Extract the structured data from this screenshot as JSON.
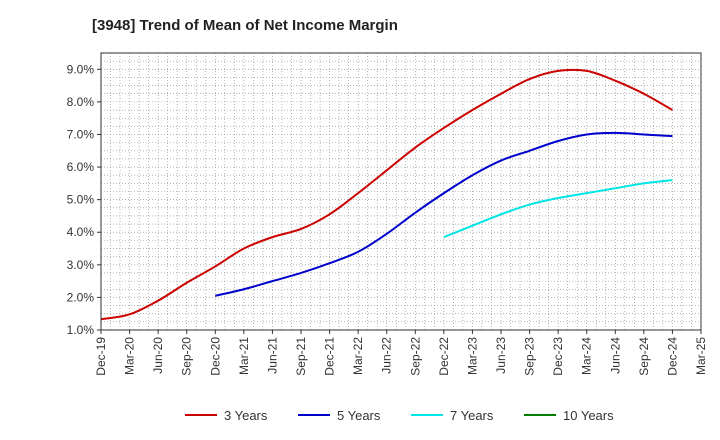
{
  "chart_data": {
    "type": "line",
    "title": "[3948]  Trend of Mean of Net Income Margin",
    "xlabel": "",
    "ylabel": "",
    "x": [
      "Dec-19",
      "Mar-20",
      "Jun-20",
      "Sep-20",
      "Dec-20",
      "Mar-21",
      "Jun-21",
      "Sep-21",
      "Dec-21",
      "Mar-22",
      "Jun-22",
      "Sep-22",
      "Dec-22",
      "Mar-23",
      "Jun-23",
      "Sep-23",
      "Dec-23",
      "Mar-24",
      "Jun-24",
      "Sep-24",
      "Dec-24",
      "Mar-25"
    ],
    "ylim": [
      1.0,
      9.5
    ],
    "yticks": [
      1.0,
      2.0,
      3.0,
      4.0,
      5.0,
      6.0,
      7.0,
      8.0,
      9.0
    ],
    "ytick_labels": [
      "1.0%",
      "2.0%",
      "3.0%",
      "4.0%",
      "5.0%",
      "6.0%",
      "7.0%",
      "8.0%",
      "9.0%"
    ],
    "grid": true,
    "legend_position": "bottom",
    "series": [
      {
        "name": "3 Years",
        "color": "#cc0000",
        "values": [
          1.33,
          1.48,
          1.9,
          2.45,
          2.95,
          3.5,
          3.85,
          4.1,
          4.55,
          5.2,
          5.9,
          6.6,
          7.2,
          7.75,
          8.25,
          8.7,
          8.95,
          8.95,
          8.65,
          8.25,
          7.75,
          null
        ]
      },
      {
        "name": "5 Years",
        "color": "#0000cc",
        "values": [
          null,
          null,
          null,
          null,
          2.05,
          2.25,
          2.5,
          2.75,
          3.05,
          3.4,
          3.95,
          4.6,
          5.2,
          5.75,
          6.2,
          6.5,
          6.8,
          7.0,
          7.05,
          7.0,
          6.95,
          null
        ]
      },
      {
        "name": "7 Years",
        "color": "#00e5e5",
        "values": [
          null,
          null,
          null,
          null,
          null,
          null,
          null,
          null,
          null,
          null,
          null,
          null,
          3.85,
          4.2,
          4.55,
          4.85,
          5.05,
          5.2,
          5.35,
          5.5,
          5.6,
          null
        ]
      },
      {
        "name": "10 Years",
        "color": "#008000",
        "values": [
          null,
          null,
          null,
          null,
          null,
          null,
          null,
          null,
          null,
          null,
          null,
          null,
          null,
          null,
          null,
          null,
          null,
          null,
          null,
          null,
          null,
          null
        ]
      }
    ]
  }
}
